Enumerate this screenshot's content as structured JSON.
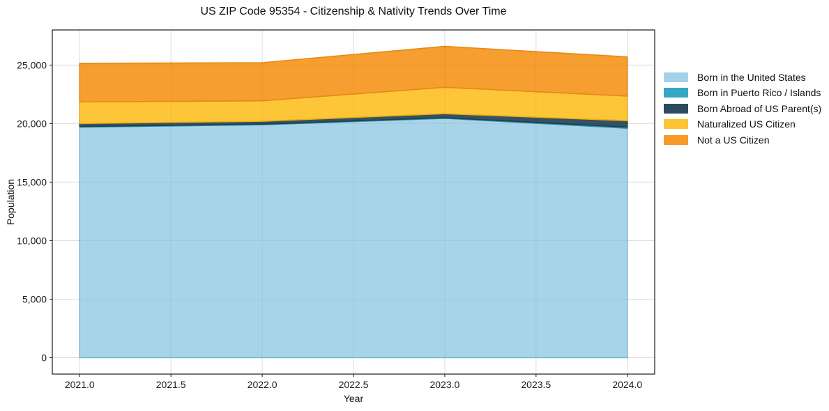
{
  "chart_data": {
    "type": "area",
    "stacked": true,
    "title": "US ZIP Code 95354 - Citizenship & Nativity Trends Over Time",
    "xlabel": "Year",
    "ylabel": "Population",
    "x": [
      2021,
      2022,
      2023,
      2024
    ],
    "series": [
      {
        "name": "Born in the United States",
        "color": "#a3d2e8",
        "edge": "#82bcda",
        "values": [
          19700,
          19900,
          20450,
          19600
        ]
      },
      {
        "name": "Born in Puerto Rico / Islands",
        "color": "#38a7c3",
        "edge": "#2d92ad",
        "values": [
          50,
          50,
          50,
          100
        ]
      },
      {
        "name": "Born Abroad of US Parent(s)",
        "color": "#2b4b5e",
        "edge": "#223e4e",
        "values": [
          250,
          250,
          350,
          550
        ]
      },
      {
        "name": "Naturalized US Citizen",
        "color": "#fdc431",
        "edge": "#eead12",
        "values": [
          1850,
          1750,
          2250,
          2100
        ]
      },
      {
        "name": "Not a US Citizen",
        "color": "#f79a28",
        "edge": "#e78917",
        "values": [
          3300,
          3250,
          3500,
          3350
        ]
      }
    ],
    "totals": [
      25150,
      25200,
      26600,
      25700
    ],
    "xlim": [
      2020.85,
      2024.15
    ],
    "ylim": [
      -1400,
      28000
    ],
    "x_ticks": [
      {
        "v": 2021.0,
        "label": "2021.0"
      },
      {
        "v": 2021.5,
        "label": "2021.5"
      },
      {
        "v": 2022.0,
        "label": "2022.0"
      },
      {
        "v": 2022.5,
        "label": "2022.5"
      },
      {
        "v": 2023.0,
        "label": "2023.0"
      },
      {
        "v": 2023.5,
        "label": "2023.5"
      },
      {
        "v": 2024.0,
        "label": "2024.0"
      }
    ],
    "y_ticks": [
      {
        "v": 0,
        "label": "0"
      },
      {
        "v": 5000,
        "label": "5,000"
      },
      {
        "v": 10000,
        "label": "10,000"
      },
      {
        "v": 15000,
        "label": "15,000"
      },
      {
        "v": 20000,
        "label": "20,000"
      },
      {
        "v": 25000,
        "label": "25,000"
      }
    ],
    "grid": true,
    "legend_position": "right",
    "grid_color": "#e7e7e7",
    "spine_color": "#1a1a1a",
    "tick_label_color": "#1a1a1a"
  }
}
